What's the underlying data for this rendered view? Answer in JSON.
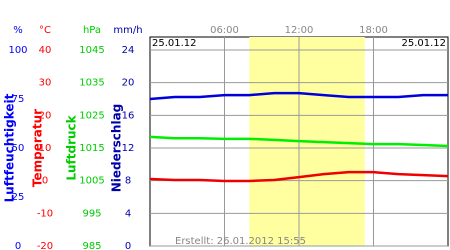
{
  "chart_data": {
    "type": "line",
    "start_date": "25.01.12",
    "end_date": "25.01.12",
    "created": "Erstellt: 26.01.2012 15:55",
    "x": [
      0,
      2,
      4,
      6,
      8,
      10,
      12,
      14,
      16,
      18,
      20,
      22,
      24
    ],
    "xlim": [
      0,
      24
    ],
    "xticks": [
      {
        "value": 6,
        "label": "06:00"
      },
      {
        "value": 12,
        "label": "12:00"
      },
      {
        "value": 18,
        "label": "18:00"
      }
    ],
    "shaded_x": [
      8,
      17.3
    ],
    "shade_color": "#ffffa0",
    "axes": [
      {
        "unit": "%",
        "title": "Luftfeuchtigkeit",
        "color": "#0000ff",
        "ylim": [
          0,
          100
        ],
        "yticks": [
          100,
          75,
          50,
          25,
          0
        ]
      },
      {
        "unit": "°C",
        "title": "Temperatur",
        "color": "#ff0000",
        "ylim": [
          -20,
          40
        ],
        "yticks": [
          40,
          30,
          20,
          10,
          0,
          -10,
          -20
        ]
      },
      {
        "unit": "hPa",
        "title": "Luftdruck",
        "color": "#00cc00",
        "ylim": [
          985,
          1045
        ],
        "yticks": [
          1045,
          1035,
          1025,
          1015,
          1005,
          995,
          985
        ]
      },
      {
        "unit": "mm/h",
        "title": "Niederschlag",
        "color": "#0000aa",
        "ylim": [
          0,
          24
        ],
        "yticks": [
          24,
          20,
          16,
          12,
          8,
          4,
          0
        ]
      }
    ],
    "series": [
      {
        "axis": 0,
        "color": "#0000dd",
        "values": [
          75,
          76,
          76,
          77,
          77,
          78,
          78,
          77,
          76,
          76,
          76,
          77,
          77
        ]
      },
      {
        "axis": 1,
        "color": "#ee0000",
        "values": [
          0.5,
          0.2,
          0.2,
          -0.1,
          -0.1,
          0.2,
          1.1,
          2,
          2.6,
          2.6,
          2,
          1.7,
          1.4
        ]
      },
      {
        "axis": 2,
        "color": "#00ee00",
        "values": [
          1018.4,
          1018,
          1018,
          1017.8,
          1017.8,
          1017.5,
          1017.1,
          1016.8,
          1016.5,
          1016.2,
          1016.2,
          1015.9,
          1015.6
        ]
      }
    ]
  }
}
